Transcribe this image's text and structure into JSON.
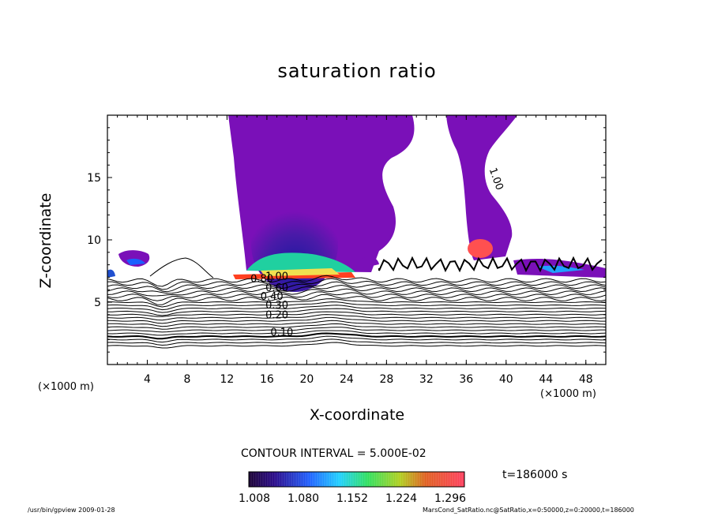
{
  "chart_data": {
    "type": "contour",
    "title": "saturation ratio",
    "xlabel": "X-coordinate",
    "ylabel": "Z-coordinate",
    "x_unit": "(×1000 m)",
    "xlim": [
      0,
      50
    ],
    "ylim": [
      0,
      20
    ],
    "x_ticks": [
      4,
      8,
      12,
      16,
      20,
      24,
      28,
      32,
      36,
      40,
      44,
      48
    ],
    "y_ticks": [
      5,
      10,
      15
    ],
    "contour_labels": [
      {
        "text": "0.10",
        "x": 17.5,
        "z": 2.3
      },
      {
        "text": "0.20",
        "x": 17,
        "z": 3.7
      },
      {
        "text": "0.30",
        "x": 17,
        "z": 4.5
      },
      {
        "text": "0.40",
        "x": 16.5,
        "z": 5.2
      },
      {
        "text": "0.60",
        "x": 17,
        "z": 5.9
      },
      {
        "text": "0.80",
        "x": 15.5,
        "z": 6.6
      },
      {
        "text": "1.00",
        "x": 17,
        "z": 6.8
      },
      {
        "text": "1.00",
        "x": 38.7,
        "z": 14.8
      }
    ],
    "contour_interval_text": "CONTOUR INTERVAL = 5.000E-02",
    "colorbar": {
      "ticks": [
        "1.008",
        "1.080",
        "1.152",
        "1.224",
        "1.296"
      ]
    },
    "time_text": "t=186000 s"
  },
  "footer": {
    "left": "/usr/bin/gpview  2009-01-28",
    "right": "MarsCond_SatRatio.nc@SatRatio,x=0:50000,z=0:20000,t=186000"
  }
}
